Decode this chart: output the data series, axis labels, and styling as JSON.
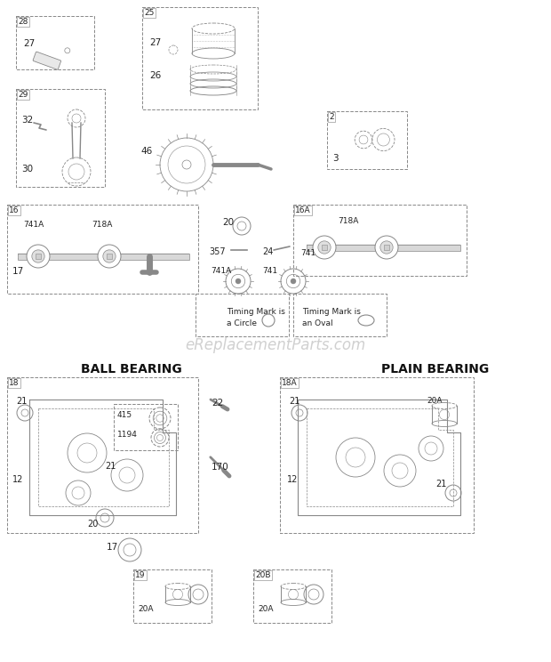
{
  "bg_color": "#ffffff",
  "watermark": "eReplacementParts.com",
  "watermark_color": "#d0d0d0",
  "watermark_fontsize": 12,
  "line_color": "#aaaaaa",
  "text_color": "#222222",
  "title_ball": "BALL BEARING",
  "title_plain": "PLAIN BEARING",
  "title_fontsize": 10,
  "figw": 6.2,
  "figh": 7.44,
  "dpi": 100
}
